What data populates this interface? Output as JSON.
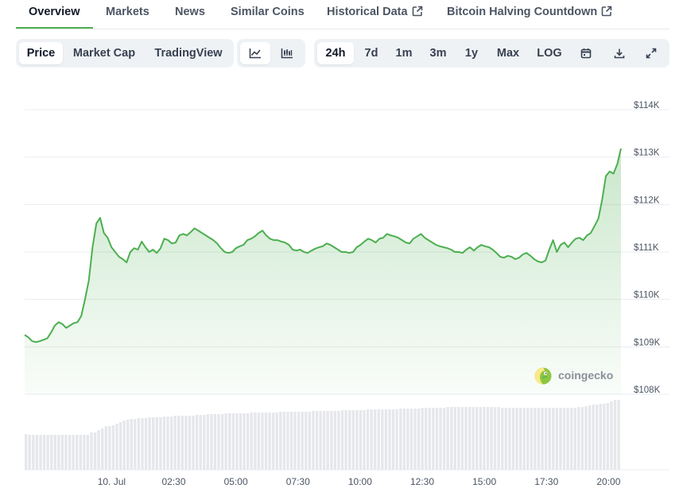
{
  "nav": {
    "tabs": [
      {
        "label": "Overview",
        "active": true,
        "external": false
      },
      {
        "label": "Markets",
        "active": false,
        "external": false
      },
      {
        "label": "News",
        "active": false,
        "external": false
      },
      {
        "label": "Similar Coins",
        "active": false,
        "external": false
      },
      {
        "label": "Historical Data",
        "active": false,
        "external": true
      },
      {
        "label": "Bitcoin Halving Countdown",
        "active": false,
        "external": true
      }
    ]
  },
  "toolbar": {
    "metric_tabs": [
      {
        "label": "Price",
        "active": true
      },
      {
        "label": "Market Cap",
        "active": false
      },
      {
        "label": "TradingView",
        "active": false
      }
    ],
    "chart_types": [
      {
        "icon": "line-chart-icon",
        "active": true
      },
      {
        "icon": "candlestick-chart-icon",
        "active": false
      }
    ],
    "ranges": [
      {
        "label": "24h",
        "active": true
      },
      {
        "label": "7d",
        "active": false
      },
      {
        "label": "1m",
        "active": false
      },
      {
        "label": "3m",
        "active": false
      },
      {
        "label": "1y",
        "active": false
      },
      {
        "label": "Max",
        "active": false
      },
      {
        "label": "LOG",
        "active": false
      }
    ],
    "actions": [
      {
        "icon": "calendar-icon"
      },
      {
        "icon": "download-icon"
      },
      {
        "icon": "fullscreen-icon"
      }
    ]
  },
  "brand": {
    "name": "coingecko"
  },
  "colors": {
    "line": "#4caf50",
    "volume": "#e5e7eb",
    "grid": "#e8ecf0",
    "accent": "#4caf50"
  },
  "chart_data": {
    "type": "area",
    "series": [
      {
        "values": [
          109.25,
          109.2,
          109.12,
          109.1,
          109.12,
          109.15,
          109.18,
          109.3,
          109.45,
          109.52,
          109.48,
          109.4,
          109.45,
          109.5,
          109.52,
          109.65,
          110.0,
          110.4,
          111.1,
          111.6,
          111.72,
          111.4,
          111.3,
          111.1,
          111.0,
          110.9,
          110.85,
          110.78,
          111.0,
          111.08,
          111.05,
          111.22,
          111.1,
          111.0,
          111.05,
          110.98,
          111.08,
          111.28,
          111.25,
          111.18,
          111.2,
          111.35,
          111.38,
          111.35,
          111.42,
          111.5,
          111.45,
          111.4,
          111.35,
          111.3,
          111.25,
          111.18,
          111.08,
          111.0,
          110.98,
          111.0,
          111.08,
          111.12,
          111.15,
          111.25,
          111.28,
          111.33,
          111.4,
          111.45,
          111.35,
          111.28,
          111.25,
          111.25,
          111.22,
          111.2,
          111.15,
          111.05,
          111.03,
          111.05,
          111.0,
          110.98,
          111.03,
          111.07,
          111.1,
          111.12,
          111.18,
          111.15,
          111.1,
          111.05,
          111.0,
          111.0,
          110.98,
          111.0,
          111.1,
          111.15,
          111.22,
          111.28,
          111.25,
          111.2,
          111.28,
          111.3,
          111.38,
          111.35,
          111.33,
          111.3,
          111.25,
          111.2,
          111.18,
          111.28,
          111.33,
          111.38,
          111.3,
          111.25,
          111.2,
          111.15,
          111.12,
          111.1,
          111.08,
          111.05,
          111.0,
          111.0,
          110.98,
          111.05,
          111.1,
          111.03,
          111.1,
          111.15,
          111.12,
          111.1,
          111.05,
          110.98,
          110.9,
          110.88,
          110.92,
          110.9,
          110.85,
          110.88,
          110.95,
          110.98,
          110.92,
          110.85,
          110.8,
          110.78,
          110.82,
          111.05,
          111.25,
          111.0,
          111.15,
          111.2,
          111.1,
          111.2,
          111.28,
          111.3,
          111.25,
          111.35,
          111.4,
          111.55,
          111.7,
          112.1,
          112.6,
          112.7,
          112.65,
          112.85,
          113.18
        ]
      }
    ],
    "x_start": "2025-07-09T20:30",
    "x_end": "2025-07-10T20:30",
    "x_ticks": [
      "10. Jul",
      "02:30",
      "05:00",
      "07:30",
      "10:00",
      "12:30",
      "15:00",
      "17:30",
      "20:00"
    ],
    "y_ticks": [
      "$108K",
      "$109K",
      "$110K",
      "$111K",
      "$112K",
      "$113K",
      "$114K"
    ],
    "ylim": [
      108,
      114
    ],
    "y_unit": "K USD",
    "volume": [
      0.45,
      0.44,
      0.44,
      0.44,
      0.44,
      0.44,
      0.44,
      0.44,
      0.44,
      0.44,
      0.44,
      0.44,
      0.44,
      0.44,
      0.44,
      0.44,
      0.44,
      0.44,
      0.47,
      0.47,
      0.5,
      0.52,
      0.55,
      0.55,
      0.56,
      0.58,
      0.6,
      0.62,
      0.63,
      0.64,
      0.64,
      0.65,
      0.65,
      0.65,
      0.66,
      0.66,
      0.66,
      0.66,
      0.67,
      0.67,
      0.67,
      0.68,
      0.68,
      0.68,
      0.68,
      0.68,
      0.68,
      0.69,
      0.69,
      0.69,
      0.7,
      0.7,
      0.7,
      0.7,
      0.7,
      0.71,
      0.71,
      0.71,
      0.71,
      0.71,
      0.71,
      0.71,
      0.72,
      0.72,
      0.72,
      0.72,
      0.72,
      0.72,
      0.72,
      0.72,
      0.73,
      0.73,
      0.73,
      0.73,
      0.73,
      0.73,
      0.73,
      0.73,
      0.73,
      0.74,
      0.74,
      0.74,
      0.74,
      0.74,
      0.74,
      0.74,
      0.74,
      0.75,
      0.75,
      0.75,
      0.75,
      0.75,
      0.75,
      0.75,
      0.76,
      0.76,
      0.76,
      0.76,
      0.76,
      0.76,
      0.76,
      0.76,
      0.76,
      0.77,
      0.77,
      0.77,
      0.77,
      0.77,
      0.77,
      0.78,
      0.78,
      0.78,
      0.78,
      0.78,
      0.78,
      0.78,
      0.79,
      0.79,
      0.79,
      0.79,
      0.79,
      0.79,
      0.79,
      0.79,
      0.79,
      0.79,
      0.79,
      0.79,
      0.79,
      0.79,
      0.79,
      0.78,
      0.78,
      0.78,
      0.78,
      0.78,
      0.78,
      0.78,
      0.78,
      0.78,
      0.78,
      0.78,
      0.78,
      0.78,
      0.78,
      0.78,
      0.78,
      0.78,
      0.78,
      0.78,
      0.78,
      0.78,
      0.79,
      0.79,
      0.8,
      0.81,
      0.82,
      0.82,
      0.83,
      0.83,
      0.84,
      0.86,
      0.88,
      0.88
    ]
  }
}
